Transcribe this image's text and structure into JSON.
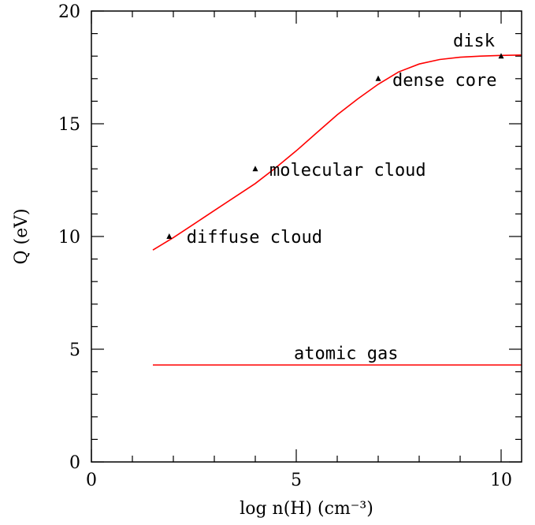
{
  "chart_data": {
    "type": "line",
    "xlabel": "log n(H) (cm⁻³)",
    "ylabel": "Q (eV)",
    "xlim": [
      0,
      10.5
    ],
    "ylim": [
      0,
      20
    ],
    "x_ticks": [
      0,
      5,
      10
    ],
    "y_ticks": [
      0,
      5,
      10,
      15,
      20
    ],
    "x_tick_labels": [
      "0",
      "5",
      "10"
    ],
    "y_tick_labels": [
      "0",
      "5",
      "10",
      "15",
      "20"
    ],
    "x_minor_step": 1,
    "y_minor_step": 1,
    "grid": false,
    "colors": {
      "curve": "#ff0000",
      "axes": "#000000",
      "marker": "#000000"
    },
    "series": [
      {
        "x": [
          1.5,
          2.0,
          2.5,
          3.0,
          3.5,
          4.0,
          4.5,
          5.0,
          5.5,
          6.0,
          6.5,
          7.0,
          7.5,
          8.0,
          8.5,
          9.0,
          9.5,
          10.0,
          10.5
        ],
        "y": [
          9.4,
          9.95,
          10.55,
          11.15,
          11.75,
          12.35,
          13.05,
          13.8,
          14.6,
          15.4,
          16.1,
          16.75,
          17.3,
          17.65,
          17.85,
          17.95,
          18.0,
          18.03,
          18.05
        ]
      },
      {
        "x": [
          1.5,
          10.5
        ],
        "y": [
          4.3,
          4.3
        ]
      }
    ],
    "points": [
      {
        "label": "diffuse cloud",
        "x": 1.9,
        "y": 10.0
      },
      {
        "label": "molecular cloud",
        "x": 4.0,
        "y": 13.0
      },
      {
        "label": "dense core",
        "x": 7.0,
        "y": 17.0
      },
      {
        "label": "disk",
        "x": 10.0,
        "y": 18.0
      }
    ],
    "annotations": [
      {
        "text": "atomic gas",
        "x": 6.0,
        "y": 4.7
      }
    ]
  }
}
